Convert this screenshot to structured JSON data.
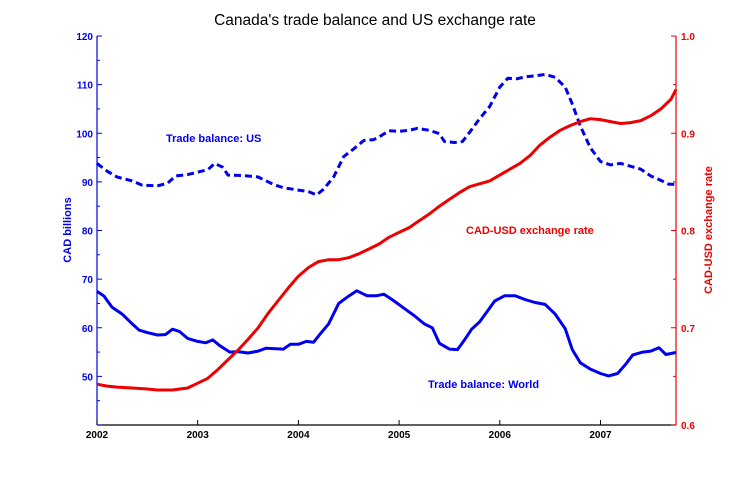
{
  "chart_data": {
    "type": "line",
    "title": "Canada's trade balance and US exchange rate",
    "ylabel_left": "CAD billions",
    "ylabel_right": "CAD-USD exchange rate",
    "xlim": [
      2002,
      2007.75
    ],
    "ylim_left": [
      40,
      120
    ],
    "ylim_right": [
      0.6,
      1.0
    ],
    "x_ticks": [
      "2002",
      "2003",
      "2004",
      "2005",
      "2006",
      "2007"
    ],
    "y_ticks_left": [
      "50",
      "60",
      "70",
      "80",
      "90",
      "100",
      "110",
      "120"
    ],
    "y_ticks_right": [
      "0.6",
      "0.7",
      "0.8",
      "0.9",
      "1.0"
    ],
    "colors": {
      "blue": "#0000ee",
      "red": "#ee0000",
      "axis": "#000000"
    },
    "series": [
      {
        "name": "Trade balance: US",
        "label": "Trade balance: US",
        "axis": "left",
        "style": "dashed",
        "color": "#0000ee",
        "points": [
          [
            2002.0,
            93.8
          ],
          [
            2002.1,
            92.2
          ],
          [
            2002.2,
            91.0
          ],
          [
            2002.35,
            90.2
          ],
          [
            2002.45,
            89.3
          ],
          [
            2002.6,
            89.2
          ],
          [
            2002.7,
            89.7
          ],
          [
            2002.78,
            91.2
          ],
          [
            2002.9,
            91.5
          ],
          [
            2003.0,
            92.0
          ],
          [
            2003.1,
            92.5
          ],
          [
            2003.17,
            93.8
          ],
          [
            2003.25,
            93.0
          ],
          [
            2003.3,
            91.4
          ],
          [
            2003.45,
            91.3
          ],
          [
            2003.6,
            91.0
          ],
          [
            2003.75,
            89.5
          ],
          [
            2003.85,
            88.8
          ],
          [
            2004.0,
            88.3
          ],
          [
            2004.1,
            88.0
          ],
          [
            2004.18,
            87.3
          ],
          [
            2004.25,
            88.5
          ],
          [
            2004.35,
            91.0
          ],
          [
            2004.45,
            95.2
          ],
          [
            2004.55,
            96.8
          ],
          [
            2004.65,
            98.5
          ],
          [
            2004.75,
            98.7
          ],
          [
            2004.82,
            99.5
          ],
          [
            2004.9,
            100.5
          ],
          [
            2005.0,
            100.4
          ],
          [
            2005.1,
            100.6
          ],
          [
            2005.18,
            101.0
          ],
          [
            2005.3,
            100.6
          ],
          [
            2005.4,
            99.9
          ],
          [
            2005.45,
            98.3
          ],
          [
            2005.55,
            98.1
          ],
          [
            2005.63,
            98.3
          ],
          [
            2005.7,
            100.2
          ],
          [
            2005.8,
            103.0
          ],
          [
            2005.9,
            105.5
          ],
          [
            2006.0,
            109.5
          ],
          [
            2006.08,
            111.3
          ],
          [
            2006.17,
            111.2
          ],
          [
            2006.25,
            111.6
          ],
          [
            2006.35,
            111.8
          ],
          [
            2006.45,
            112.1
          ],
          [
            2006.55,
            111.5
          ],
          [
            2006.65,
            109.5
          ],
          [
            2006.72,
            106.0
          ],
          [
            2006.8,
            101.5
          ],
          [
            2006.9,
            97.0
          ],
          [
            2007.0,
            94.2
          ],
          [
            2007.1,
            93.5
          ],
          [
            2007.2,
            93.8
          ],
          [
            2007.3,
            93.2
          ],
          [
            2007.4,
            92.6
          ],
          [
            2007.5,
            91.2
          ],
          [
            2007.6,
            90.3
          ],
          [
            2007.68,
            89.5
          ],
          [
            2007.75,
            89.5
          ]
        ]
      },
      {
        "name": "Trade balance: World",
        "label": "Trade balance: World",
        "axis": "left",
        "style": "solid",
        "color": "#0000ee",
        "points": [
          [
            2002.0,
            67.5
          ],
          [
            2002.07,
            66.5
          ],
          [
            2002.15,
            64.2
          ],
          [
            2002.25,
            62.8
          ],
          [
            2002.35,
            60.8
          ],
          [
            2002.42,
            59.5
          ],
          [
            2002.5,
            59.0
          ],
          [
            2002.6,
            58.5
          ],
          [
            2002.68,
            58.6
          ],
          [
            2002.75,
            59.7
          ],
          [
            2002.82,
            59.2
          ],
          [
            2002.9,
            57.8
          ],
          [
            2003.0,
            57.2
          ],
          [
            2003.08,
            56.9
          ],
          [
            2003.15,
            57.5
          ],
          [
            2003.22,
            56.3
          ],
          [
            2003.32,
            55.0
          ],
          [
            2003.4,
            55.1
          ],
          [
            2003.5,
            54.8
          ],
          [
            2003.6,
            55.2
          ],
          [
            2003.68,
            55.8
          ],
          [
            2003.78,
            55.7
          ],
          [
            2003.85,
            55.6
          ],
          [
            2003.92,
            56.6
          ],
          [
            2004.0,
            56.6
          ],
          [
            2004.08,
            57.2
          ],
          [
            2004.15,
            57.0
          ],
          [
            2004.22,
            58.8
          ],
          [
            2004.3,
            60.8
          ],
          [
            2004.4,
            65.0
          ],
          [
            2004.5,
            66.5
          ],
          [
            2004.58,
            67.6
          ],
          [
            2004.68,
            66.6
          ],
          [
            2004.78,
            66.6
          ],
          [
            2004.85,
            66.9
          ],
          [
            2004.95,
            65.5
          ],
          [
            2005.05,
            64.0
          ],
          [
            2005.15,
            62.5
          ],
          [
            2005.25,
            60.8
          ],
          [
            2005.33,
            60.0
          ],
          [
            2005.4,
            56.8
          ],
          [
            2005.5,
            55.6
          ],
          [
            2005.58,
            55.5
          ],
          [
            2005.65,
            57.5
          ],
          [
            2005.72,
            59.7
          ],
          [
            2005.8,
            61.2
          ],
          [
            2005.88,
            63.5
          ],
          [
            2005.95,
            65.5
          ],
          [
            2006.05,
            66.6
          ],
          [
            2006.15,
            66.6
          ],
          [
            2006.25,
            65.8
          ],
          [
            2006.35,
            65.2
          ],
          [
            2006.45,
            64.8
          ],
          [
            2006.55,
            62.8
          ],
          [
            2006.65,
            59.8
          ],
          [
            2006.72,
            55.5
          ],
          [
            2006.8,
            52.8
          ],
          [
            2006.9,
            51.5
          ],
          [
            2007.0,
            50.6
          ],
          [
            2007.08,
            50.1
          ],
          [
            2007.17,
            50.6
          ],
          [
            2007.25,
            52.5
          ],
          [
            2007.32,
            54.4
          ],
          [
            2007.42,
            55.0
          ],
          [
            2007.5,
            55.2
          ],
          [
            2007.58,
            55.9
          ],
          [
            2007.65,
            54.5
          ],
          [
            2007.75,
            54.9
          ]
        ]
      },
      {
        "name": "CAD-USD exchange rate",
        "label": "CAD-USD exchange rate",
        "axis": "right",
        "style": "solid",
        "color": "#ee0000",
        "points": [
          [
            2002.0,
            0.642
          ],
          [
            2002.1,
            0.64
          ],
          [
            2002.2,
            0.639
          ],
          [
            2002.35,
            0.638
          ],
          [
            2002.5,
            0.637
          ],
          [
            2002.6,
            0.636
          ],
          [
            2002.75,
            0.636
          ],
          [
            2002.9,
            0.638
          ],
          [
            2003.0,
            0.643
          ],
          [
            2003.1,
            0.648
          ],
          [
            2003.2,
            0.657
          ],
          [
            2003.3,
            0.667
          ],
          [
            2003.4,
            0.677
          ],
          [
            2003.5,
            0.688
          ],
          [
            2003.6,
            0.7
          ],
          [
            2003.7,
            0.715
          ],
          [
            2003.8,
            0.728
          ],
          [
            2003.9,
            0.741
          ],
          [
            2004.0,
            0.753
          ],
          [
            2004.1,
            0.762
          ],
          [
            2004.2,
            0.768
          ],
          [
            2004.3,
            0.77
          ],
          [
            2004.4,
            0.77
          ],
          [
            2004.5,
            0.772
          ],
          [
            2004.6,
            0.776
          ],
          [
            2004.7,
            0.781
          ],
          [
            2004.8,
            0.786
          ],
          [
            2004.9,
            0.793
          ],
          [
            2005.0,
            0.798
          ],
          [
            2005.1,
            0.803
          ],
          [
            2005.2,
            0.81
          ],
          [
            2005.3,
            0.817
          ],
          [
            2005.4,
            0.825
          ],
          [
            2005.5,
            0.832
          ],
          [
            2005.6,
            0.839
          ],
          [
            2005.7,
            0.845
          ],
          [
            2005.8,
            0.848
          ],
          [
            2005.9,
            0.851
          ],
          [
            2006.0,
            0.857
          ],
          [
            2006.1,
            0.863
          ],
          [
            2006.2,
            0.869
          ],
          [
            2006.3,
            0.877
          ],
          [
            2006.4,
            0.888
          ],
          [
            2006.5,
            0.896
          ],
          [
            2006.6,
            0.903
          ],
          [
            2006.7,
            0.908
          ],
          [
            2006.8,
            0.912
          ],
          [
            2006.9,
            0.915
          ],
          [
            2007.0,
            0.914
          ],
          [
            2007.1,
            0.912
          ],
          [
            2007.2,
            0.91
          ],
          [
            2007.3,
            0.911
          ],
          [
            2007.4,
            0.913
          ],
          [
            2007.5,
            0.918
          ],
          [
            2007.6,
            0.925
          ],
          [
            2007.7,
            0.935
          ],
          [
            2007.75,
            0.945
          ]
        ]
      }
    ]
  }
}
